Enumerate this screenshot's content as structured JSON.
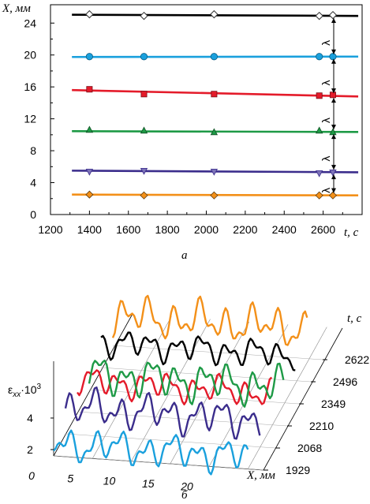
{
  "chart_data": [
    {
      "type": "line",
      "panel_label": "а",
      "y_axis_label": "X, мм",
      "x_axis_label": "t, с",
      "x_ticks": [
        "1200",
        "1400",
        "1600",
        "1800",
        "2000",
        "2200",
        "2400",
        "2600"
      ],
      "y_ticks": [
        "0",
        "4",
        "8",
        "12",
        "16",
        "20",
        "24"
      ],
      "xlim": [
        1200,
        2800
      ],
      "ylim": [
        0,
        26.3
      ],
      "grid": false,
      "legend": "none",
      "lambda_symbol": "λ",
      "series": [
        {
          "color": "#000000",
          "marker": "diamond-open",
          "line": [
            [
              1310,
              25.05
            ],
            [
              2780,
              24.9
            ]
          ],
          "points": [
            [
              1400,
              25.1
            ],
            [
              1680,
              24.9
            ],
            [
              2040,
              25.1
            ],
            [
              2580,
              24.9
            ],
            [
              2650,
              25.0
            ]
          ]
        },
        {
          "color": "#1aa0dd",
          "marker": "circle",
          "line": [
            [
              1310,
              19.75
            ],
            [
              2780,
              19.8
            ]
          ],
          "points": [
            [
              1400,
              19.8
            ],
            [
              1680,
              19.8
            ],
            [
              2040,
              19.8
            ],
            [
              2580,
              19.8
            ],
            [
              2650,
              19.8
            ]
          ]
        },
        {
          "color": "#e41b2a",
          "marker": "square",
          "line": [
            [
              1310,
              15.6
            ],
            [
              2780,
              14.8
            ]
          ],
          "points": [
            [
              1400,
              15.7
            ],
            [
              1680,
              15.1
            ],
            [
              2040,
              15.1
            ],
            [
              2580,
              14.9
            ],
            [
              2650,
              15.0
            ]
          ]
        },
        {
          "color": "#1e9a46",
          "marker": "triangle-up",
          "line": [
            [
              1310,
              10.45
            ],
            [
              2780,
              10.35
            ]
          ],
          "points": [
            [
              1400,
              10.6
            ],
            [
              1680,
              10.5
            ],
            [
              2040,
              10.3
            ],
            [
              2580,
              10.5
            ],
            [
              2650,
              10.3
            ]
          ]
        },
        {
          "color": "#3b2d8c",
          "marker": "triangle-down",
          "line": [
            [
              1310,
              5.5
            ],
            [
              2780,
              5.3
            ]
          ],
          "points": [
            [
              1400,
              5.4
            ],
            [
              1680,
              5.5
            ],
            [
              2040,
              5.4
            ],
            [
              2580,
              5.2
            ],
            [
              2650,
              5.3
            ]
          ]
        },
        {
          "color": "#f39019",
          "marker": "diamond",
          "line": [
            [
              1310,
              2.5
            ],
            [
              2780,
              2.4
            ]
          ],
          "points": [
            [
              1400,
              2.5
            ],
            [
              1680,
              2.4
            ],
            [
              2040,
              2.4
            ],
            [
              2580,
              2.4
            ],
            [
              2650,
              2.4
            ]
          ]
        }
      ]
    },
    {
      "type": "line",
      "subtype": "3d-waterfall",
      "panel_label": "б",
      "y_axis_label_main": "ε",
      "y_axis_label_sub": "xx",
      "y_axis_label_mult": "·10",
      "y_axis_label_exp": "3",
      "x_axis_label": "X, мм",
      "depth_axis_label": "t, с",
      "x_ticks": [
        "0",
        "5",
        "10",
        "15",
        "20"
      ],
      "y_ticks": [
        "2",
        "4"
      ],
      "depth_ticks": [
        "1929",
        "2068",
        "2210",
        "2349",
        "2496",
        "2622"
      ],
      "xlim": [
        0,
        27
      ],
      "ylim": [
        0,
        6
      ],
      "series": [
        {
          "time": 1929,
          "color": "#1aa0dd",
          "baseline": 2.8,
          "amplitude": 1.2,
          "seed": 11
        },
        {
          "time": 2068,
          "color": "#3b2d8c",
          "baseline": 3.7,
          "amplitude": 1.3,
          "seed": 23
        },
        {
          "time": 2210,
          "color": "#e41b2a",
          "baseline": 4.0,
          "amplitude": 1.0,
          "seed": 37
        },
        {
          "time": 2349,
          "color": "#1e9a46",
          "baseline": 3.0,
          "amplitude": 1.4,
          "seed": 41
        },
        {
          "time": 2496,
          "color": "#000000",
          "baseline": 3.6,
          "amplitude": 1.0,
          "seed": 53
        },
        {
          "time": 2622,
          "color": "#f39019",
          "baseline": 3.9,
          "amplitude": 1.4,
          "seed": 67
        }
      ]
    }
  ]
}
